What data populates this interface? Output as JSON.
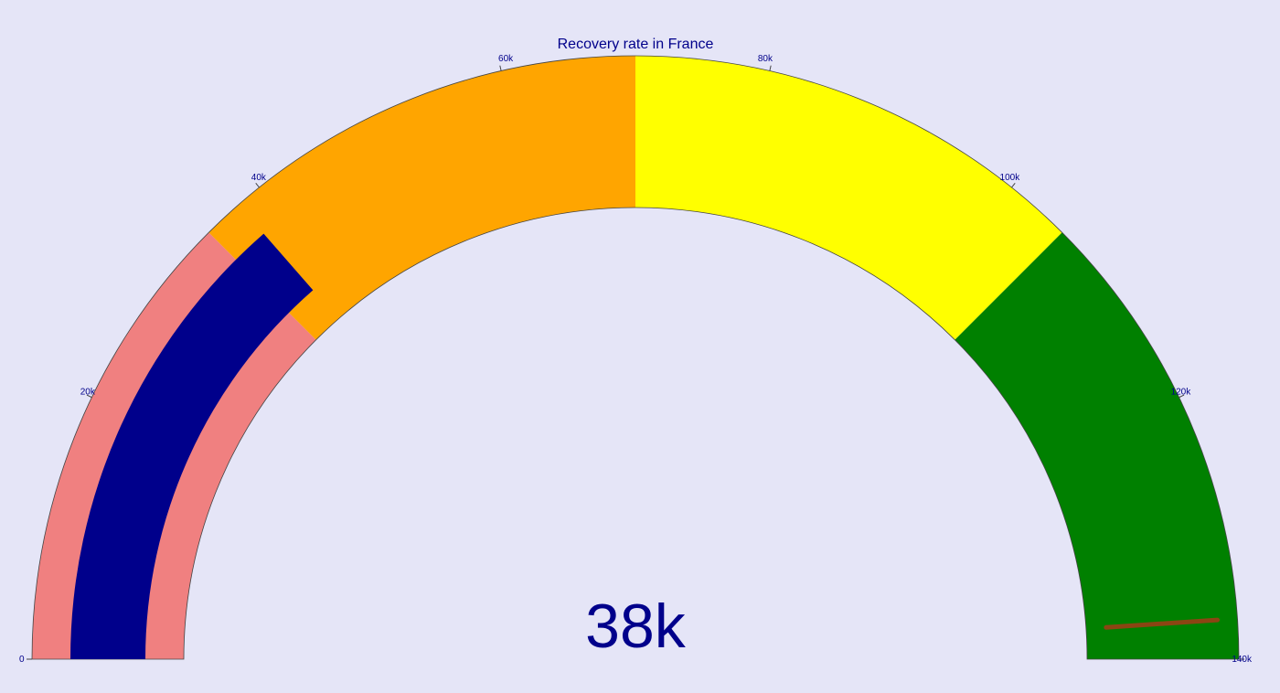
{
  "chart_data": {
    "type": "gauge",
    "title": "Recovery rate in France",
    "value": 38000,
    "value_label": "38k",
    "range": [
      0,
      140000
    ],
    "threshold": 137000,
    "bar_color": "#00008b",
    "threshold_color": "#8b4513",
    "steps": [
      {
        "from": 0,
        "to": 35000,
        "color": "#f08080"
      },
      {
        "from": 35000,
        "to": 70000,
        "color": "#ffa500"
      },
      {
        "from": 70000,
        "to": 105000,
        "color": "#ffff00"
      },
      {
        "from": 105000,
        "to": 140000,
        "color": "#008000"
      }
    ],
    "ticks": [
      {
        "value": 0,
        "label": "0"
      },
      {
        "value": 20000,
        "label": "20k"
      },
      {
        "value": 40000,
        "label": "40k"
      },
      {
        "value": 60000,
        "label": "60k"
      },
      {
        "value": 80000,
        "label": "80k"
      },
      {
        "value": 100000,
        "label": "100k"
      },
      {
        "value": 120000,
        "label": "120k"
      },
      {
        "value": 140000,
        "label": "140k"
      }
    ]
  }
}
